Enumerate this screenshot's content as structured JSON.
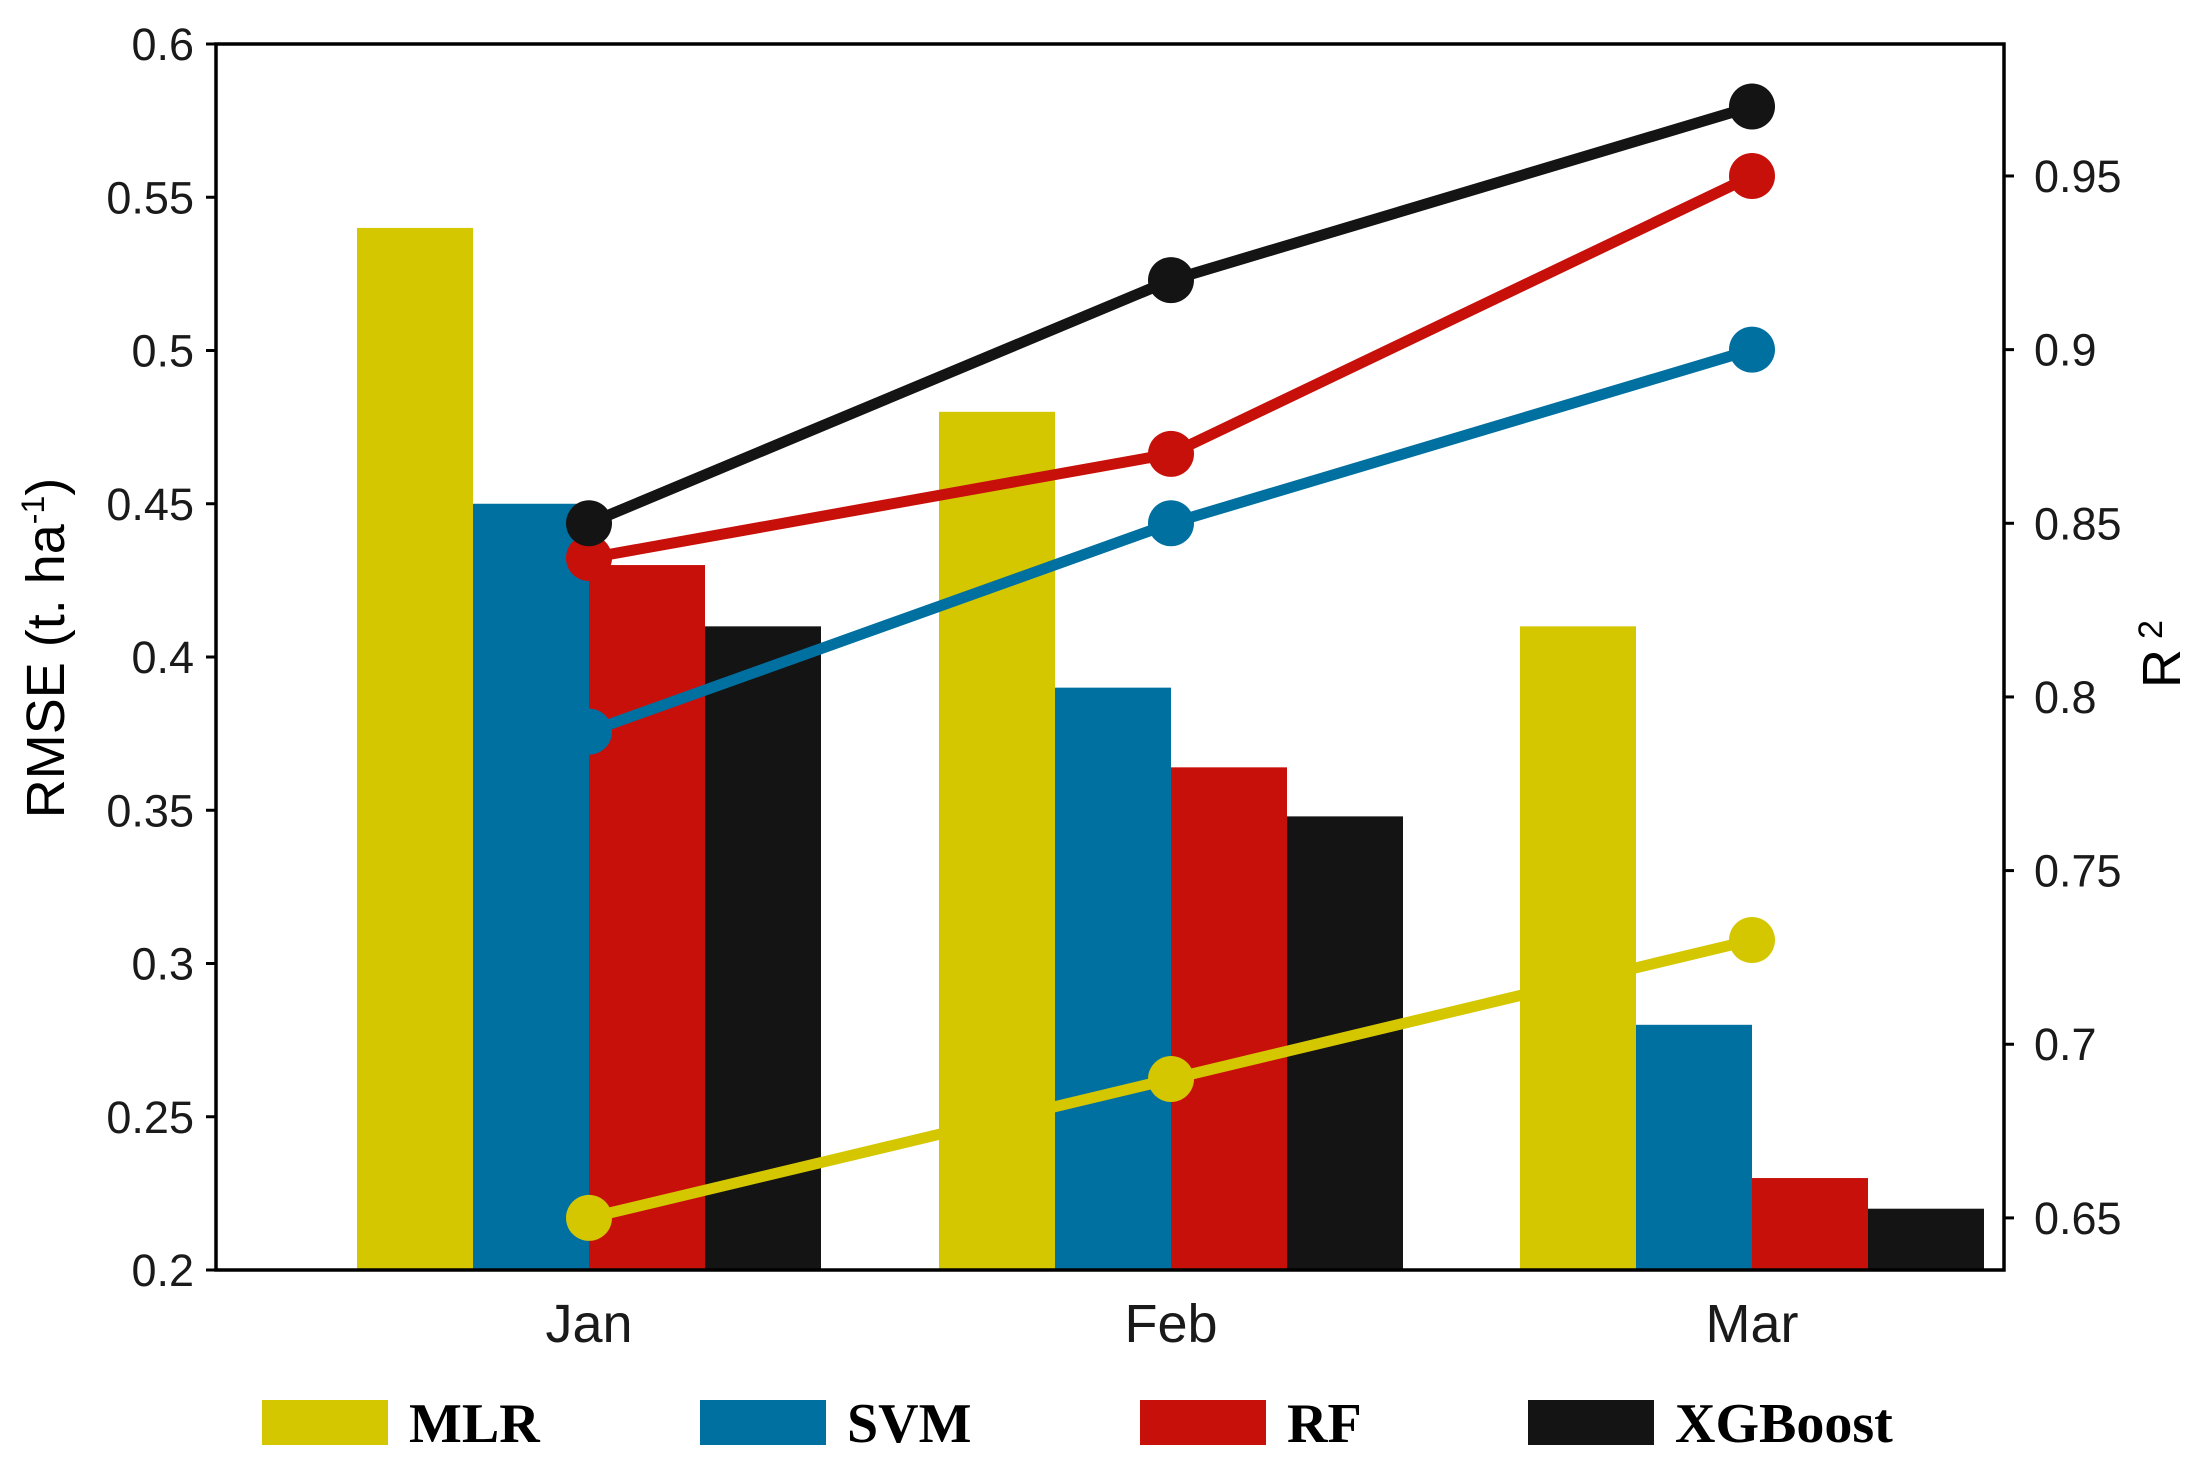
{
  "chart_data": {
    "type": "bar+line",
    "categories": [
      "Jan",
      "Feb",
      "Mar"
    ],
    "bar_series": [
      {
        "name": "MLR",
        "color": "#d4c700",
        "values": [
          0.54,
          0.48,
          0.41
        ]
      },
      {
        "name": "SVM",
        "color": "#0070a0",
        "values": [
          0.45,
          0.39,
          0.28
        ]
      },
      {
        "name": "RF",
        "color": "#c8100a",
        "values": [
          0.43,
          0.364,
          0.23
        ]
      },
      {
        "name": "XGBoost",
        "color": "#141414",
        "values": [
          0.41,
          0.348,
          0.22
        ]
      }
    ],
    "line_series": [
      {
        "name": "MLR",
        "color": "#d4c700",
        "values": [
          0.65,
          0.69,
          0.73
        ]
      },
      {
        "name": "SVM",
        "color": "#0070a0",
        "values": [
          0.79,
          0.85,
          0.9
        ]
      },
      {
        "name": "RF",
        "color": "#c8100a",
        "values": [
          0.84,
          0.87,
          0.95
        ]
      },
      {
        "name": "XGBoost",
        "color": "#141414",
        "values": [
          0.85,
          0.92,
          0.97
        ]
      }
    ],
    "y_left": {
      "label_main": "RMSE (t. ha",
      "label_sup": "-1",
      "label_close": ")",
      "range": [
        0.2,
        0.6
      ],
      "ticks": [
        0.2,
        0.25,
        0.3,
        0.35,
        0.4,
        0.45,
        0.5,
        0.55,
        0.6
      ],
      "tick_labels": [
        "0.2",
        "0.25",
        "0.3",
        "0.35",
        "0.4",
        "0.45",
        "0.5",
        "0.55",
        "0.6"
      ]
    },
    "y_right": {
      "label_main": "R",
      "label_sup": "2",
      "range": [
        0.635,
        0.988
      ],
      "ticks": [
        0.65,
        0.7,
        0.75,
        0.8,
        0.85,
        0.9,
        0.95
      ],
      "tick_labels": [
        "0.65",
        "0.7",
        "0.75",
        "0.8",
        "0.85",
        "0.9",
        "0.95"
      ]
    },
    "legend": {
      "position": "bottom",
      "entries": [
        {
          "name": "MLR",
          "color": "#d4c700"
        },
        {
          "name": "SVM",
          "color": "#0070a0"
        },
        {
          "name": "RF",
          "color": "#c8100a"
        },
        {
          "name": "XGBoost",
          "color": "#141414"
        }
      ]
    },
    "grid": false
  }
}
